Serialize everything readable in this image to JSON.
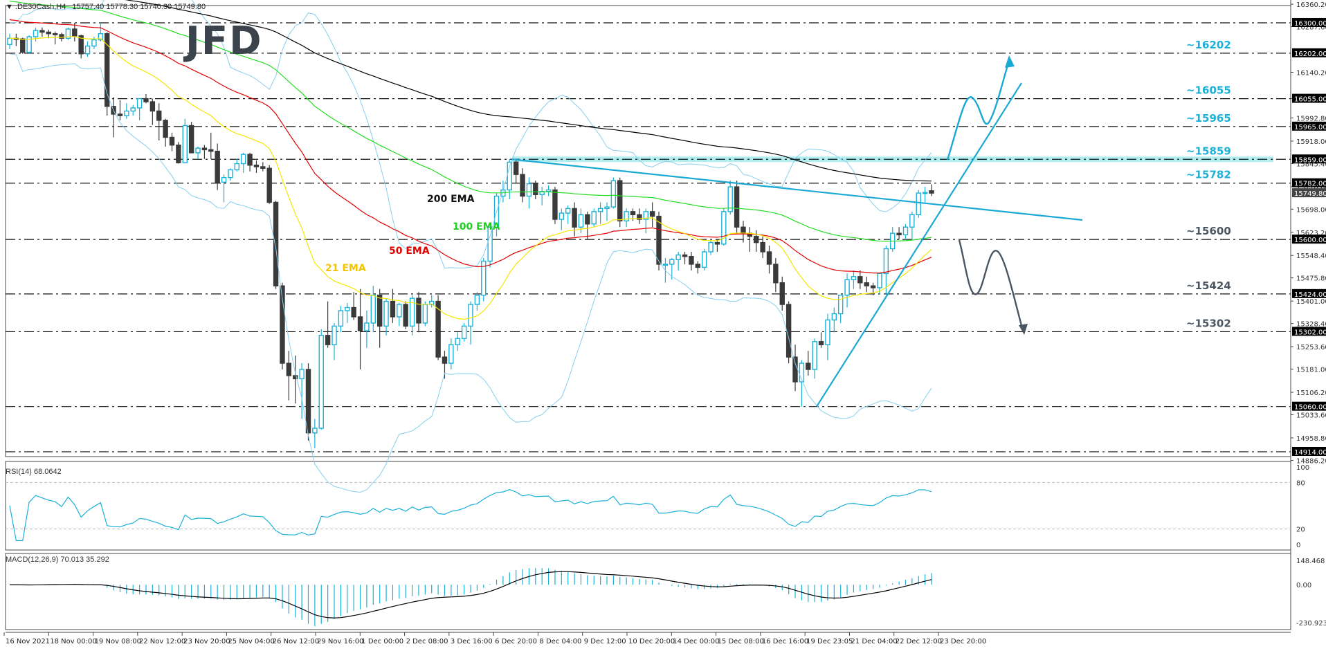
{
  "header": {
    "symbol": ".DE30Cash,H4",
    "ohlc": "15757.40 15778.30 15740.30 15749.80",
    "logo": "JFD"
  },
  "colors": {
    "bull": "#1ab0d8",
    "bear": "#3a3a3a",
    "bollinger": "#87cef0",
    "ema21": "#f5e600",
    "ema50": "#e00000",
    "ema100": "#22dd22",
    "ema200": "#000000",
    "trend": "#1aa8d4",
    "zone": "#b2eef0",
    "resistance_label": "#1ab0d8",
    "support_label": "#4a5662",
    "rsi_line": "#1ab0d8",
    "macd_hist": "#1ab0d8",
    "macd_signal": "#000000"
  },
  "chart_data": {
    "type": "candlestick",
    "title": ".DE30Cash,H4",
    "ohlc_last": {
      "open": 15757.4,
      "high": 15778.3,
      "low": 15740.3,
      "close": 15749.8
    },
    "ylim": [
      14886.2,
      16360.2
    ],
    "y_ticks": [
      "16360.20",
      "16287.60",
      "16140.20",
      "16055.40",
      "15992.80",
      "15918.00",
      "15845.40",
      "15770.60",
      "15698.00",
      "15623.20",
      "15548.40",
      "15475.80",
      "15401.00",
      "15328.40",
      "15253.60",
      "15181.00",
      "15106.20",
      "15033.60",
      "14958.80",
      "14886.20"
    ],
    "x_ticks": [
      "16 Nov 2021",
      "18 Nov 00:00",
      "19 Nov 08:00",
      "22 Nov 12:00",
      "23 Nov 20:00",
      "25 Nov 04:00",
      "26 Nov 12:00",
      "29 Nov 16:00",
      "1 Dec 00:00",
      "2 Dec 08:00",
      "3 Dec 16:00",
      "6 Dec 20:00",
      "8 Dec 04:00",
      "9 Dec 12:00",
      "10 Dec 20:00",
      "14 Dec 00:00",
      "15 Dec 08:00",
      "16 Dec 16:00",
      "19 Dec 23:05",
      "21 Dec 04:00",
      "22 Dec 12:00",
      "23 Dec 20:00"
    ],
    "horizontal_levels": [
      {
        "price": 16300.0,
        "label": "16300.00",
        "annotation": ""
      },
      {
        "price": 16202.0,
        "label": "16202.00",
        "annotation": "~16202",
        "kind": "resistance"
      },
      {
        "price": 16055.0,
        "label": "16055.00",
        "annotation": "~16055",
        "kind": "resistance"
      },
      {
        "price": 15965.0,
        "label": "15965.00",
        "annotation": "~15965",
        "kind": "resistance"
      },
      {
        "price": 15859.0,
        "label": "15859.00",
        "annotation": "~15859",
        "kind": "resistance",
        "zone": true
      },
      {
        "price": 15782.0,
        "label": "15782.00",
        "annotation": "~15782",
        "kind": "resistance"
      },
      {
        "price": 15600.0,
        "label": "15600.00",
        "annotation": "~15600",
        "kind": "support"
      },
      {
        "price": 15424.0,
        "label": "15424.00",
        "annotation": "~15424",
        "kind": "support"
      },
      {
        "price": 15302.0,
        "label": "15302.00",
        "annotation": "~15302",
        "kind": "support"
      },
      {
        "price": 15060.0,
        "label": "15060.00",
        "annotation": "",
        "kind": "support"
      },
      {
        "price": 14914.0,
        "label": "14914.00",
        "annotation": "",
        "kind": "support"
      }
    ],
    "current_price_label": "15749.80",
    "indicators": [
      {
        "name": "21 EMA",
        "color": "#f5c400"
      },
      {
        "name": "50 EMA",
        "color": "#e00000"
      },
      {
        "name": "100 EMA",
        "color": "#22dd22"
      },
      {
        "name": "200 EMA",
        "color": "#000000"
      },
      {
        "name": "Bollinger Bands",
        "color": "#87cef0"
      }
    ],
    "candles": [
      [
        16230,
        16265,
        16215,
        16250
      ],
      [
        16250,
        16265,
        16225,
        16248
      ],
      [
        16248,
        16252,
        16200,
        16205
      ],
      [
        16205,
        16260,
        16200,
        16255
      ],
      [
        16255,
        16285,
        16240,
        16275
      ],
      [
        16275,
        16285,
        16255,
        16270
      ],
      [
        16270,
        16278,
        16250,
        16265
      ],
      [
        16265,
        16272,
        16230,
        16262
      ],
      [
        16262,
        16268,
        16240,
        16250
      ],
      [
        16250,
        16285,
        16245,
        16280
      ],
      [
        16280,
        16300,
        16240,
        16258
      ],
      [
        16258,
        16262,
        16185,
        16200
      ],
      [
        16200,
        16240,
        16190,
        16225
      ],
      [
        16225,
        16255,
        16215,
        16245
      ],
      [
        16245,
        16300,
        16240,
        16265
      ],
      [
        16265,
        16270,
        16000,
        16030
      ],
      [
        16030,
        16060,
        15930,
        16005
      ],
      [
        16005,
        16050,
        15985,
        16000
      ],
      [
        16000,
        16040,
        15990,
        16015
      ],
      [
        16015,
        16035,
        16000,
        16025
      ],
      [
        16025,
        16055,
        15985,
        16055
      ],
      [
        16055,
        16070,
        16040,
        16045
      ],
      [
        16045,
        16055,
        15970,
        16015
      ],
      [
        16015,
        16040,
        15920,
        15985
      ],
      [
        15985,
        15990,
        15900,
        15930
      ],
      [
        15930,
        15945,
        15885,
        15905
      ],
      [
        15905,
        15915,
        15845,
        15848
      ],
      [
        15848,
        15990,
        15870,
        15968
      ],
      [
        15968,
        15980,
        15880,
        15880
      ],
      [
        15880,
        15900,
        15860,
        15895
      ],
      [
        15895,
        15905,
        15860,
        15890
      ],
      [
        15890,
        15945,
        15860,
        15885
      ],
      [
        15885,
        15910,
        15760,
        15785
      ],
      [
        15785,
        15810,
        15720,
        15800
      ],
      [
        15800,
        15830,
        15790,
        15825
      ],
      [
        15825,
        15860,
        15820,
        15845
      ],
      [
        15845,
        15880,
        15815,
        15875
      ],
      [
        15875,
        15880,
        15820,
        15840
      ],
      [
        15840,
        15855,
        15815,
        15835
      ],
      [
        15835,
        15850,
        15820,
        15830
      ],
      [
        15830,
        15840,
        15715,
        15720
      ],
      [
        15720,
        15725,
        15440,
        15450
      ],
      [
        15450,
        15460,
        15180,
        15200
      ],
      [
        15200,
        15240,
        15080,
        15160
      ],
      [
        15160,
        15225,
        15070,
        15150
      ],
      [
        15150,
        15200,
        15020,
        15180
      ],
      [
        15180,
        15200,
        14950,
        14975
      ],
      [
        14975,
        15020,
        14925,
        14990
      ],
      [
        14990,
        15310,
        14985,
        15290
      ],
      [
        15290,
        15400,
        15250,
        15260
      ],
      [
        15260,
        15330,
        15210,
        15320
      ],
      [
        15320,
        15385,
        15300,
        15370
      ],
      [
        15370,
        15395,
        15330,
        15380
      ],
      [
        15380,
        15430,
        15340,
        15350
      ],
      [
        15350,
        15440,
        15180,
        15305
      ],
      [
        15305,
        15370,
        15250,
        15330
      ],
      [
        15330,
        15450,
        15300,
        15420
      ],
      [
        15420,
        15440,
        15250,
        15320
      ],
      [
        15320,
        15410,
        15290,
        15400
      ],
      [
        15400,
        15440,
        15330,
        15350
      ],
      [
        15350,
        15395,
        15320,
        15390
      ],
      [
        15390,
        15400,
        15310,
        15320
      ],
      [
        15320,
        15420,
        15290,
        15410
      ],
      [
        15410,
        15430,
        15300,
        15330
      ],
      [
        15330,
        15400,
        15320,
        15390
      ],
      [
        15390,
        15420,
        15380,
        15400
      ],
      [
        15400,
        15420,
        15210,
        15220
      ],
      [
        15220,
        15240,
        15150,
        15200
      ],
      [
        15200,
        15280,
        15180,
        15260
      ],
      [
        15260,
        15300,
        15240,
        15280
      ],
      [
        15280,
        15330,
        15270,
        15320
      ],
      [
        15320,
        15400,
        15260,
        15390
      ],
      [
        15390,
        15430,
        15370,
        15420
      ],
      [
        15420,
        15540,
        15400,
        15530
      ],
      [
        15530,
        15650,
        15510,
        15640
      ],
      [
        15640,
        15750,
        15610,
        15740
      ],
      [
        15740,
        15790,
        15720,
        15760
      ],
      [
        15760,
        15860,
        15730,
        15850
      ],
      [
        15850,
        15860,
        15780,
        15810
      ],
      [
        15810,
        15830,
        15720,
        15740
      ],
      [
        15740,
        15800,
        15700,
        15780
      ],
      [
        15780,
        15790,
        15730,
        15745
      ],
      [
        15745,
        15770,
        15710,
        15755
      ],
      [
        15755,
        15775,
        15740,
        15760
      ],
      [
        15760,
        15770,
        15650,
        15665
      ],
      [
        15665,
        15700,
        15630,
        15685
      ],
      [
        15685,
        15710,
        15650,
        15700
      ],
      [
        15700,
        15720,
        15610,
        15640
      ],
      [
        15640,
        15700,
        15620,
        15680
      ],
      [
        15680,
        15690,
        15600,
        15650
      ],
      [
        15650,
        15700,
        15640,
        15690
      ],
      [
        15690,
        15720,
        15650,
        15700
      ],
      [
        15700,
        15720,
        15660,
        15705
      ],
      [
        15705,
        15800,
        15700,
        15790
      ],
      [
        15790,
        15800,
        15640,
        15660
      ],
      [
        15660,
        15700,
        15640,
        15690
      ],
      [
        15690,
        15700,
        15660,
        15680
      ],
      [
        15680,
        15700,
        15650,
        15665
      ],
      [
        15665,
        15700,
        15620,
        15690
      ],
      [
        15690,
        15720,
        15640,
        15675
      ],
      [
        15675,
        15690,
        15500,
        15520
      ],
      [
        15520,
        15540,
        15460,
        15520
      ],
      [
        15520,
        15540,
        15470,
        15535
      ],
      [
        15535,
        15560,
        15500,
        15550
      ],
      [
        15550,
        15560,
        15520,
        15545
      ],
      [
        15545,
        15560,
        15500,
        15520
      ],
      [
        15520,
        15530,
        15490,
        15510
      ],
      [
        15510,
        15570,
        15500,
        15560
      ],
      [
        15560,
        15600,
        15550,
        15590
      ],
      [
        15590,
        15600,
        15560,
        15585
      ],
      [
        15585,
        15700,
        15580,
        15690
      ],
      [
        15690,
        15790,
        15680,
        15770
      ],
      [
        15770,
        15790,
        15620,
        15640
      ],
      [
        15640,
        15660,
        15590,
        15620
      ],
      [
        15620,
        15640,
        15560,
        15610
      ],
      [
        15610,
        15630,
        15560,
        15590
      ],
      [
        15590,
        15610,
        15540,
        15560
      ],
      [
        15560,
        15580,
        15490,
        15520
      ],
      [
        15520,
        15540,
        15430,
        15460
      ],
      [
        15460,
        15480,
        15370,
        15390
      ],
      [
        15390,
        15400,
        15200,
        15220
      ],
      [
        15220,
        15260,
        15110,
        15140
      ],
      [
        15140,
        15210,
        15060,
        15200
      ],
      [
        15200,
        15240,
        15160,
        15180
      ],
      [
        15180,
        15280,
        15150,
        15270
      ],
      [
        15270,
        15300,
        15250,
        15260
      ],
      [
        15260,
        15360,
        15210,
        15340
      ],
      [
        15340,
        15380,
        15300,
        15360
      ],
      [
        15360,
        15390,
        15330,
        15420
      ],
      [
        15420,
        15490,
        15380,
        15470
      ],
      [
        15470,
        15500,
        15440,
        15480
      ],
      [
        15480,
        15500,
        15440,
        15460
      ],
      [
        15460,
        15480,
        15430,
        15450
      ],
      [
        15450,
        15460,
        15420,
        15444
      ],
      [
        15444,
        15470,
        15424,
        15490
      ],
      [
        15490,
        15580,
        15424,
        15570
      ],
      [
        15570,
        15640,
        15560,
        15620
      ],
      [
        15620,
        15640,
        15600,
        15615
      ],
      [
        15615,
        15650,
        15600,
        15640
      ],
      [
        15640,
        15690,
        15600,
        15680
      ],
      [
        15680,
        15760,
        15670,
        15750
      ],
      [
        15750,
        15770,
        15720,
        15752
      ],
      [
        15757.4,
        15778.3,
        15740.3,
        15749.8
      ]
    ],
    "rsi": {
      "label": "RSI(14) 68.0642",
      "period": 14,
      "value": 68.0642,
      "levels": [
        80,
        20
      ],
      "ylim": [
        0,
        100
      ],
      "ticks": [
        "100",
        "80",
        "20",
        "0"
      ]
    },
    "macd": {
      "label": "MACD(12,26,9) 70.013 35.292",
      "params": [
        12,
        26,
        9
      ],
      "main": 70.013,
      "signal": 35.292,
      "ticks": [
        "148.468",
        "0.00",
        "-230.923"
      ]
    },
    "annotations": {
      "trendline_descending": "from 8 Dec high (~15859) down toward right edge",
      "trendline_ascending": "from 20 Dec low (~15060) up to right",
      "scenario_up": "arrow up via 16055 toward 16202",
      "scenario_down": "arrow down via 15424 toward 15302"
    }
  }
}
